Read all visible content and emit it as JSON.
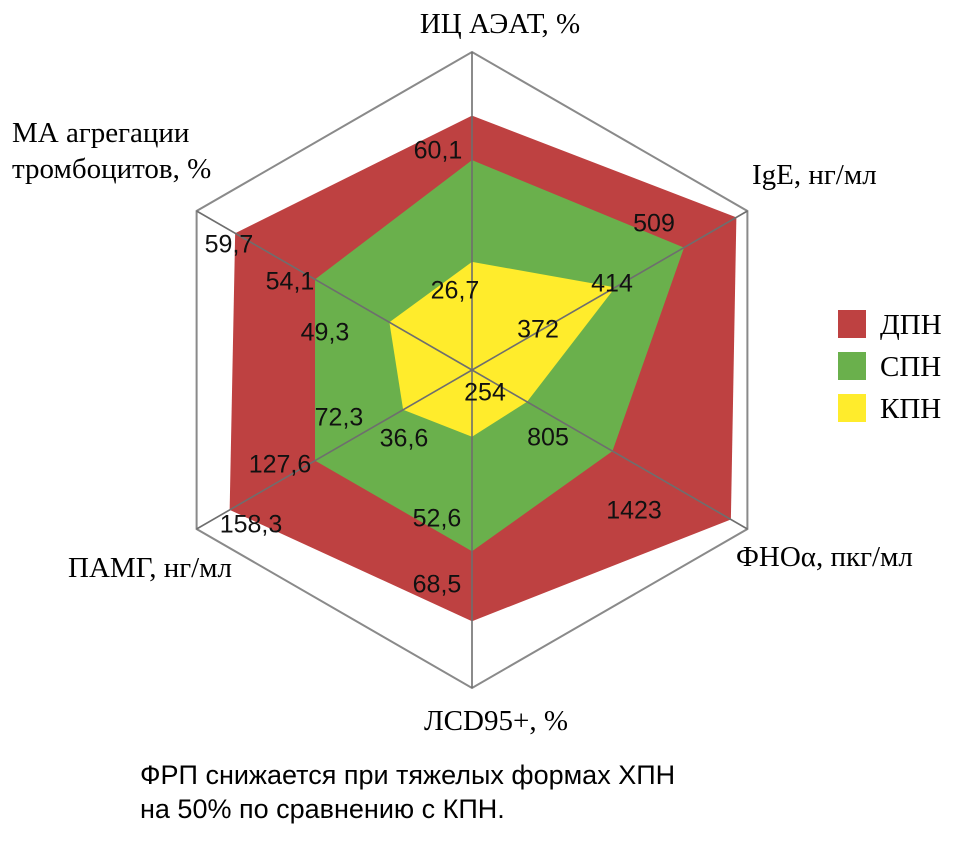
{
  "chart_data": {
    "type": "radar",
    "axes": [
      "ИЦ АЭАТ, %",
      "IgE, нг/мл",
      "ФНОα, пкг/мл",
      "ЛCD95+, %",
      "ПАМГ, нг/мл",
      "МА агрегации тромбоцитов, %"
    ],
    "series": [
      {
        "name": "ДПН",
        "color": "#be4141",
        "labels": [
          "60,1",
          "509",
          "1423",
          "68,5",
          "158,3",
          "59,7"
        ],
        "radius_fraction": [
          0.8,
          0.96,
          0.94,
          0.79,
          0.88,
          0.86
        ]
      },
      {
        "name": "СПН",
        "color": "#6ab04c",
        "labels": [
          "",
          "414",
          "805",
          "52,6",
          "127,6",
          "54,1"
        ],
        "radius_fraction": [
          0.66,
          0.77,
          0.51,
          0.57,
          0.57,
          0.57
        ]
      },
      {
        "name": "КПН",
        "color": "#ffec2c",
        "labels": [
          "26,7",
          "372",
          "254",
          "36,6",
          "72,3",
          "49,3"
        ],
        "radius_fraction": [
          0.34,
          0.52,
          0.2,
          0.21,
          0.25,
          0.3
        ]
      }
    ],
    "legend_position": "right",
    "grid": true
  },
  "caption": {
    "line1": "ФРП снижается при тяжелых формах ХПН",
    "line2": "на 50% по сравнению с КПН."
  }
}
